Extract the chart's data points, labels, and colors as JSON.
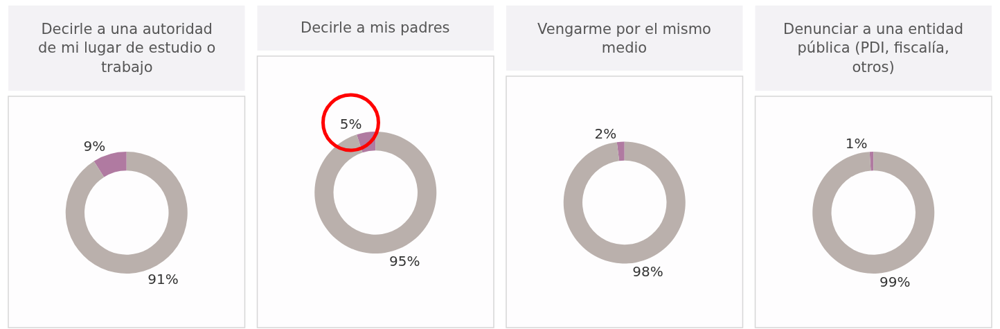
{
  "chart_data": [
    {
      "type": "donut",
      "title": "Decirle a una autoridad de mi lugar de estudio o trabajo",
      "categories": [
        null,
        null
      ],
      "values": [
        9,
        91
      ],
      "colors": [
        "#b07aa1",
        "#bab0ac"
      ],
      "value_labels": [
        "9%",
        "91%"
      ]
    },
    {
      "type": "donut",
      "title": "Decirle a mis padres",
      "categories": [
        null,
        null
      ],
      "values": [
        5,
        95
      ],
      "colors": [
        "#b07aa1",
        "#bab0ac"
      ],
      "value_labels": [
        "5%",
        "95%"
      ]
    },
    {
      "type": "donut",
      "title": "Vengarme por el mismo medio",
      "categories": [
        null,
        null
      ],
      "values": [
        2,
        98
      ],
      "colors": [
        "#b07aa1",
        "#bab0ac"
      ],
      "value_labels": [
        "2%",
        "98%"
      ]
    },
    {
      "type": "donut",
      "title": "Denunciar a una entidad pública (PDI, fiscalía, otros)",
      "categories": [
        null,
        null
      ],
      "values": [
        1,
        99
      ],
      "colors": [
        "#b07aa1",
        "#bab0ac"
      ],
      "value_labels": [
        "1%",
        "99%"
      ]
    }
  ]
}
